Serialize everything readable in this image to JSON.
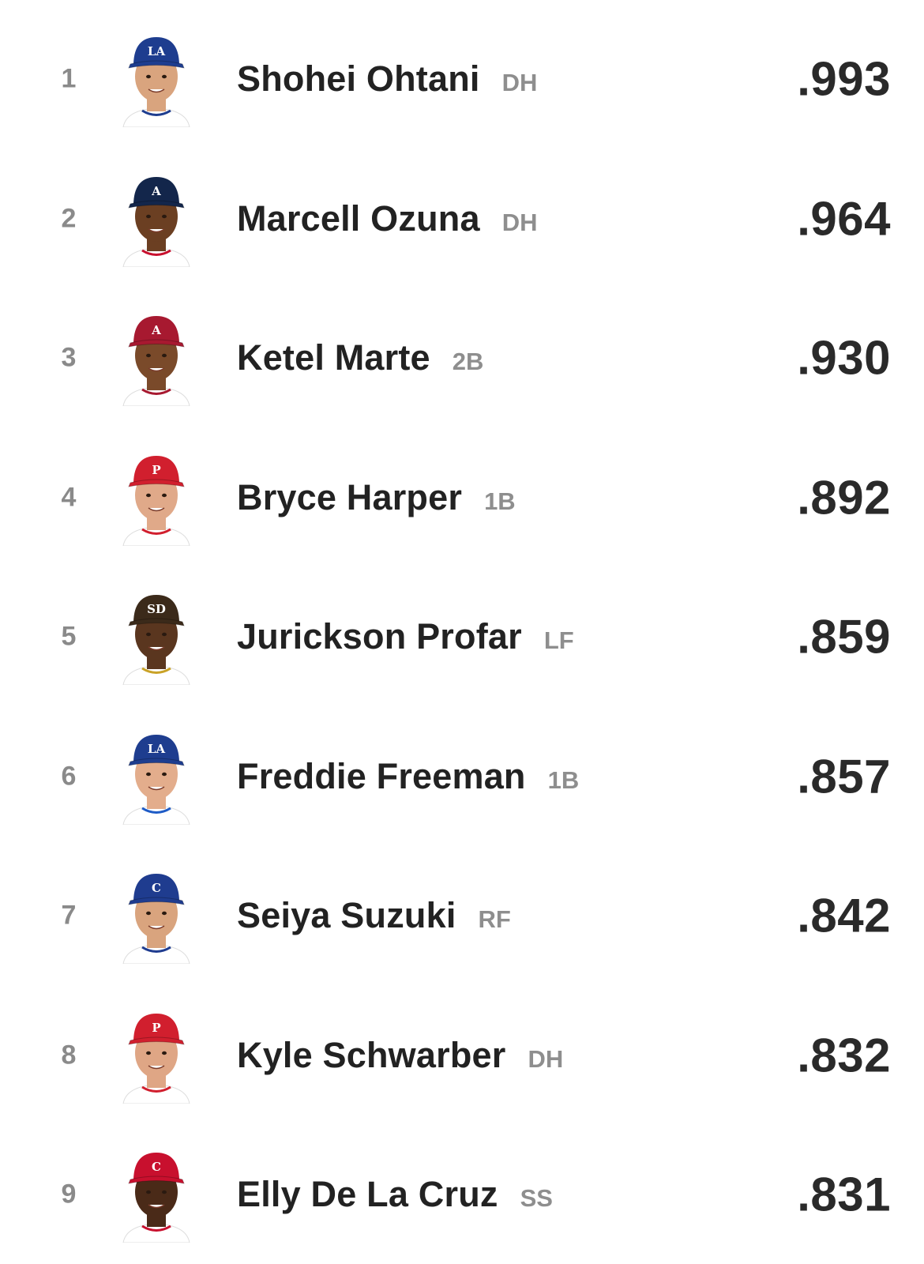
{
  "leaderboard": {
    "rows": [
      {
        "rank": "1",
        "name": "Shohei Ohtani",
        "position": "DH",
        "value": ".993",
        "cap_color": "#1e3d8f",
        "cap_logo": "LA",
        "jersey_color": "#ffffff",
        "trim_color": "#1e3d8f",
        "skin_color": "#d9a47e",
        "icon": "player-headshot-icon"
      },
      {
        "rank": "2",
        "name": "Marcell Ozuna",
        "position": "DH",
        "value": ".964",
        "cap_color": "#13264b",
        "cap_logo": "A",
        "jersey_color": "#ffffff",
        "trim_color": "#c8102e",
        "skin_color": "#6b3f22",
        "icon": "player-headshot-icon"
      },
      {
        "rank": "3",
        "name": "Ketel Marte",
        "position": "2B",
        "value": ".930",
        "cap_color": "#a71930",
        "cap_logo": "A",
        "jersey_color": "#ffffff",
        "trim_color": "#a71930",
        "skin_color": "#7a4a2a",
        "icon": "player-headshot-icon"
      },
      {
        "rank": "4",
        "name": "Bryce Harper",
        "position": "1B",
        "value": ".892",
        "cap_color": "#d11f2e",
        "cap_logo": "P",
        "jersey_color": "#ffffff",
        "trim_color": "#d11f2e",
        "skin_color": "#e0a989",
        "icon": "player-headshot-icon"
      },
      {
        "rank": "5",
        "name": "Jurickson Profar",
        "position": "LF",
        "value": ".859",
        "cap_color": "#3b2a1a",
        "cap_logo": "SD",
        "jersey_color": "#ffffff",
        "trim_color": "#c9a227",
        "skin_color": "#5a361f",
        "icon": "player-headshot-icon"
      },
      {
        "rank": "6",
        "name": "Freddie Freeman",
        "position": "1B",
        "value": ".857",
        "cap_color": "#1e3d8f",
        "cap_logo": "LA",
        "jersey_color": "#ffffff",
        "trim_color": "#1e5bc6",
        "skin_color": "#e3ad8c",
        "icon": "player-headshot-icon"
      },
      {
        "rank": "7",
        "name": "Seiya Suzuki",
        "position": "RF",
        "value": ".842",
        "cap_color": "#1f3c8f",
        "cap_logo": "C",
        "jersey_color": "#ffffff",
        "trim_color": "#1f3c8f",
        "skin_color": "#d9a47e",
        "icon": "player-headshot-icon"
      },
      {
        "rank": "8",
        "name": "Kyle Schwarber",
        "position": "DH",
        "value": ".832",
        "cap_color": "#d11f2e",
        "cap_logo": "P",
        "jersey_color": "#ffffff",
        "trim_color": "#d11f2e",
        "skin_color": "#dfa685",
        "icon": "player-headshot-icon"
      },
      {
        "rank": "9",
        "name": "Elly De La Cruz",
        "position": "SS",
        "value": ".831",
        "cap_color": "#c8102e",
        "cap_logo": "C",
        "jersey_color": "#ffffff",
        "trim_color": "#c8102e",
        "skin_color": "#4a2a18",
        "icon": "player-headshot-icon"
      }
    ]
  }
}
